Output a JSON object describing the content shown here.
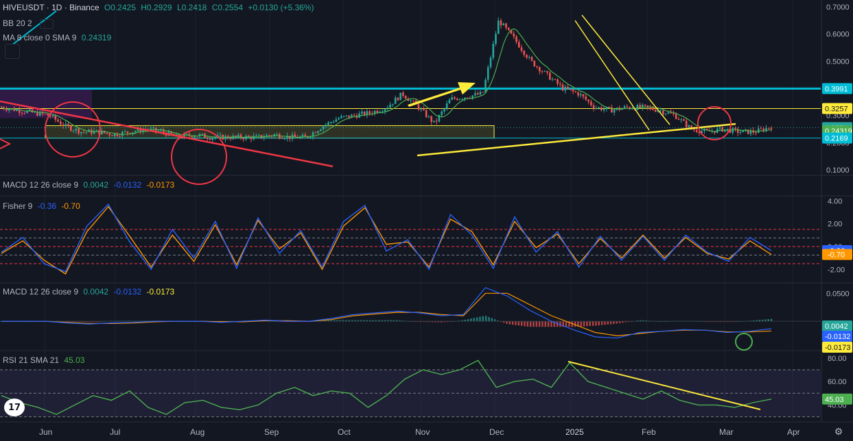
{
  "header": {
    "symbol": "HIVEUSDT · 1D · Binance",
    "open": "O0.2425",
    "high": "H0.2929",
    "low": "L0.2418",
    "close": "C0.2554",
    "change": "+0.0130 (+5.36%)",
    "bb_label": "BB 20 2",
    "ma_label": "MA 8 close 0 SMA 9",
    "ma_value": "0.24319"
  },
  "colors": {
    "background": "#131722",
    "candle_up": "#26a69a",
    "candle_down": "#ef5350",
    "ma_line": "#4caf50",
    "macd_line": "#2962ff",
    "signal_line": "#ff9800",
    "rsi_line": "#4caf50",
    "fisher_main": "#2962ff",
    "fisher_trigger": "#ff9800",
    "resistance": "#00bcd4",
    "trendline_yellow": "#ffeb3b",
    "trendline_red": "#f23645"
  },
  "macd1": {
    "label": "MACD 12 26 close 9",
    "v1": "0.0042",
    "v2": "-0.0132",
    "v3": "-0.0173"
  },
  "fisher": {
    "label": "Fisher 9",
    "v1": "-0.36",
    "v2": "-0.70"
  },
  "macd2": {
    "label": "MACD 12 26 close 9",
    "v1": "0.0042",
    "v2": "-0.0132",
    "v3": "-0.0173"
  },
  "rsi": {
    "label": "RSI 21 SMA 21",
    "v1": "45.03"
  },
  "logo_text": "17",
  "chart_data": {
    "type": "candlestick",
    "x_axis_labels": [
      "Jun",
      "Jul",
      "Aug",
      "Sep",
      "Oct",
      "Nov",
      "Dec",
      "2025",
      "Feb",
      "Mar",
      "Apr"
    ],
    "price_axis": {
      "ticks": [
        "0.7000",
        "0.6000",
        "0.5000",
        "0.4000",
        "0.3000",
        "0.2000",
        "0.1000"
      ],
      "tick_values": [
        0.7,
        0.6,
        0.5,
        0.4,
        0.3,
        0.2,
        0.1
      ],
      "ylim": [
        0.09,
        0.72
      ],
      "badges": [
        {
          "text": "0.3991",
          "value": 0.3991,
          "color": "#00bcd4"
        },
        {
          "text": "0.3257",
          "value": 0.3257,
          "color": "#ffeb3b"
        },
        {
          "text": "0.2554",
          "value": 0.2554,
          "color": "#26a69a"
        },
        {
          "text": "0.24319",
          "value": 0.24319,
          "color": "#4caf50"
        },
        {
          "text": "0.2169",
          "value": 0.2169,
          "color": "#00bcd4"
        }
      ]
    },
    "close_series": [
      0.33,
      0.32,
      0.31,
      0.3,
      0.26,
      0.24,
      0.24,
      0.23,
      0.24,
      0.25,
      0.24,
      0.22,
      0.23,
      0.22,
      0.22,
      0.22,
      0.22,
      0.23,
      0.22,
      0.22,
      0.26,
      0.29,
      0.3,
      0.31,
      0.33,
      0.38,
      0.33,
      0.27,
      0.36,
      0.37,
      0.38,
      0.65,
      0.58,
      0.5,
      0.45,
      0.4,
      0.38,
      0.33,
      0.32,
      0.33,
      0.33,
      0.32,
      0.3,
      0.25,
      0.24,
      0.25,
      0.24,
      0.24,
      0.26
    ],
    "annotations": {
      "resistance_level": 0.3991,
      "box_level_upper": 0.3257,
      "box_level_lower": 0.2169,
      "notes": [
        "descending channel",
        "rising support trendline",
        "falling red trendline",
        "red circles",
        "yellow arrow"
      ]
    },
    "macd1": {
      "ticks": [],
      "badges": [
        {
          "text": "0.0042",
          "color": "#26a69a"
        },
        {
          "text": "-0.0132",
          "color": "#2962ff"
        },
        {
          "text": "-0.0173",
          "color": "#ff9800"
        }
      ]
    },
    "fisher": {
      "ticks": [
        "4.00",
        "2.00",
        "0.00",
        "-2.00"
      ],
      "tick_values": [
        4,
        2,
        0,
        -2
      ],
      "ylim": [
        -3,
        4.2
      ],
      "levels": [
        1.5,
        0.75,
        -0.75,
        -1.5
      ],
      "badges": [
        {
          "text": "-0.36",
          "value": -0.36,
          "color": "#2962ff"
        },
        {
          "text": "-0.70",
          "value": -0.7,
          "color": "#ff9800"
        }
      ],
      "main": [
        -0.5,
        0.8,
        -1.5,
        -2.2,
        1.8,
        3.7,
        0.4,
        -2.0,
        1.5,
        -1.0,
        2.2,
        -1.9,
        2.5,
        -0.6,
        1.4,
        -1.8,
        2.2,
        3.6,
        -0.4,
        0.6,
        -2.0,
        2.8,
        1.0,
        -1.9,
        2.6,
        -0.5,
        1.3,
        -1.8,
        0.9,
        -1.2,
        0.9,
        -1.2,
        1.0,
        -0.5,
        -1.3,
        0.8,
        -0.36
      ],
      "trigger": [
        -0.6,
        0.5,
        -1.2,
        -2.4,
        1.3,
        3.5,
        0.9,
        -1.8,
        1.0,
        -1.3,
        1.9,
        -1.6,
        2.3,
        -0.2,
        1.2,
        -2.0,
        1.8,
        3.4,
        0.2,
        0.4,
        -1.8,
        2.4,
        1.3,
        -1.6,
        2.2,
        -0.1,
        1.1,
        -1.5,
        0.7,
        -1.0,
        1.0,
        -1.0,
        0.8,
        -0.6,
        -1.1,
        0.5,
        -0.7
      ]
    },
    "macd2": {
      "ticks": [
        "0.0500"
      ],
      "tick_values": [
        0.05
      ],
      "ylim": [
        -0.05,
        0.065
      ],
      "badges": [
        {
          "text": "0.0042",
          "value": 0.0042,
          "color": "#26a69a"
        },
        {
          "text": "-0.0132",
          "value": -0.0132,
          "color": "#2962ff"
        },
        {
          "text": "-0.0173",
          "value": -0.0173,
          "color": "#ff9800"
        }
      ],
      "macd": [
        0,
        0,
        0,
        -0.003,
        -0.005,
        -0.003,
        -0.002,
        0,
        0,
        0,
        -0.002,
        0,
        0.002,
        0,
        0,
        0.005,
        0.012,
        0.015,
        0.018,
        0.015,
        0.01,
        0.012,
        0.06,
        0.045,
        0.02,
        0,
        -0.015,
        -0.028,
        -0.03,
        -0.02,
        -0.018,
        -0.015,
        -0.016,
        -0.02,
        -0.018,
        -0.0132
      ],
      "signal": [
        0,
        0,
        0,
        -0.002,
        -0.004,
        -0.004,
        -0.003,
        -0.001,
        0,
        0,
        -0.001,
        -0.001,
        0.001,
        0.001,
        0,
        0.003,
        0.01,
        0.013,
        0.016,
        0.016,
        0.012,
        0.01,
        0.05,
        0.05,
        0.03,
        0.01,
        -0.005,
        -0.02,
        -0.026,
        -0.022,
        -0.018,
        -0.016,
        -0.016,
        -0.019,
        -0.019,
        -0.0173
      ]
    },
    "rsi": {
      "ticks": [
        "80.00",
        "60.00",
        "40.00"
      ],
      "tick_values": [
        80,
        60,
        40
      ],
      "ylim": [
        28,
        84
      ],
      "levels": [
        70,
        50,
        30
      ],
      "badges": [
        {
          "text": "45.03",
          "value": 45.03,
          "color": "#4caf50"
        }
      ],
      "values": [
        48,
        42,
        38,
        32,
        40,
        48,
        44,
        52,
        38,
        32,
        42,
        44,
        38,
        36,
        40,
        50,
        55,
        48,
        52,
        50,
        38,
        48,
        62,
        70,
        66,
        70,
        78,
        55,
        60,
        62,
        55,
        76,
        60,
        55,
        50,
        45,
        52,
        44,
        40,
        40,
        38,
        42,
        45.03
      ]
    }
  }
}
